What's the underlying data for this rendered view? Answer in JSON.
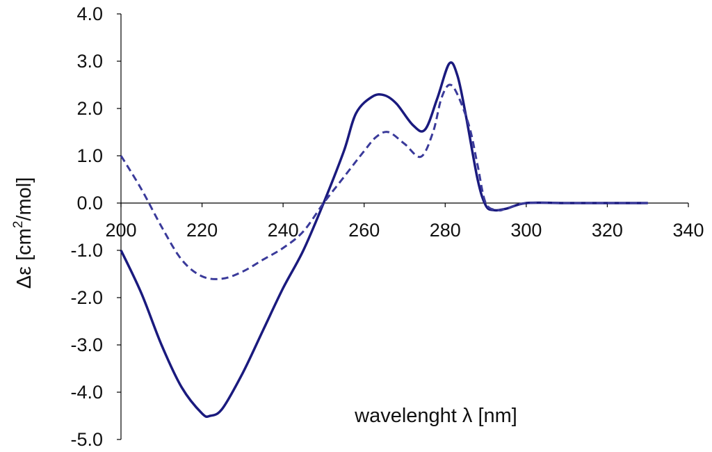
{
  "chart_data": {
    "type": "line",
    "title": "",
    "xlabel": "wavelenght λ [nm]",
    "ylabel_parts": [
      "Δε [cm",
      "2",
      "/mol]"
    ],
    "xlim": [
      200,
      340
    ],
    "ylim": [
      -5.0,
      4.0
    ],
    "x_ticks": [
      "200",
      "220",
      "240",
      "260",
      "280",
      "300",
      "320",
      "340"
    ],
    "y_ticks": [
      "4.0",
      "3.0",
      "2.0",
      "1.0",
      "0.0",
      "-1.0",
      "-2.0",
      "-3.0",
      "-4.0",
      "-5.0"
    ],
    "grid": false,
    "legend": "none",
    "series": [
      {
        "style": "solid",
        "color": "#1a1a7e",
        "x": [
          200,
          205,
          210,
          215,
          220,
          222,
          225,
          230,
          235,
          240,
          245,
          250,
          255,
          258,
          262,
          265,
          268,
          272,
          275,
          278,
          281,
          283,
          285,
          288,
          290,
          292,
          295,
          300,
          310,
          320,
          330
        ],
        "y": [
          -1.0,
          -1.9,
          -3.0,
          -3.9,
          -4.45,
          -4.5,
          -4.35,
          -3.6,
          -2.7,
          -1.8,
          -1.0,
          0.0,
          1.1,
          1.9,
          2.25,
          2.28,
          2.1,
          1.65,
          1.55,
          2.2,
          2.95,
          2.7,
          1.9,
          0.5,
          -0.05,
          -0.15,
          -0.12,
          0.0,
          0.0,
          0.0,
          0.0
        ]
      },
      {
        "style": "dashed",
        "color": "#3a3a9a",
        "x": [
          200,
          205,
          210,
          215,
          220,
          225,
          230,
          235,
          240,
          245,
          250,
          255,
          260,
          263,
          266,
          270,
          274,
          277,
          279,
          281,
          283,
          286,
          288,
          290,
          293,
          295,
          300,
          310,
          320,
          330
        ],
        "y": [
          1.0,
          0.3,
          -0.5,
          -1.2,
          -1.55,
          -1.6,
          -1.45,
          -1.2,
          -0.95,
          -0.6,
          0.0,
          0.55,
          1.1,
          1.4,
          1.5,
          1.25,
          0.98,
          1.5,
          2.2,
          2.5,
          2.3,
          1.6,
          0.8,
          0.0,
          -0.15,
          -0.12,
          0.0,
          0.0,
          0.0,
          0.0
        ]
      }
    ]
  }
}
